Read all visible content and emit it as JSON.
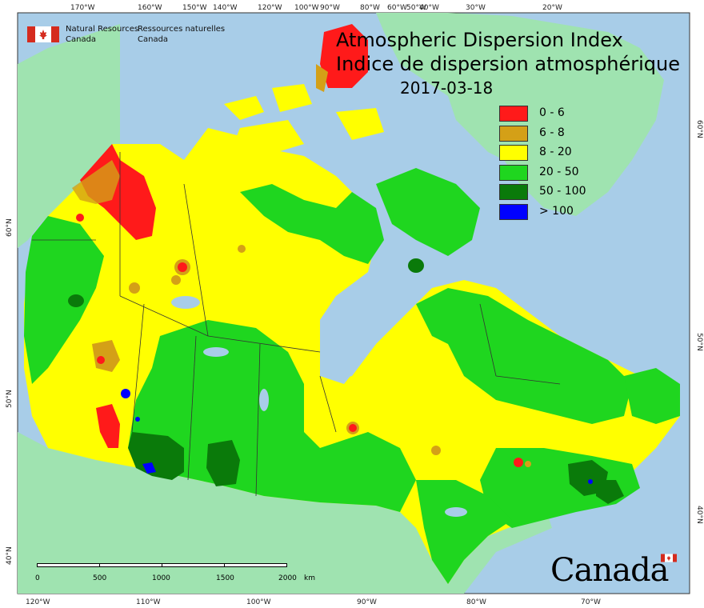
{
  "map": {
    "title_en": "Atmospheric Dispersion Index",
    "title_fr": "Indice de dispersion atmosphérique",
    "date": "2017-03-18",
    "agency": {
      "en": [
        "Natural Resources",
        "Canada"
      ],
      "fr": [
        "Ressources naturelles",
        "Canada"
      ]
    },
    "wordmark": "Canada",
    "legend": [
      {
        "label": "0 - 6",
        "color": "#ff1a1a"
      },
      {
        "label": "6 - 8",
        "color": "#d4a017"
      },
      {
        "label": "8 - 20",
        "color": "#ffff00"
      },
      {
        "label": "20 - 50",
        "color": "#1fd61f"
      },
      {
        "label": "50 - 100",
        "color": "#0a7a0a"
      },
      {
        "label": "> 100",
        "color": "#0000ff"
      }
    ],
    "scale": {
      "ticks": [
        "0",
        "500",
        "1000",
        "1500",
        "2000"
      ],
      "unit": "km"
    },
    "top_lon_labels": [
      "170°W",
      "160°W",
      "150°W",
      "140°W",
      "120°W",
      "100°W",
      "90°W",
      "80°W",
      "60°W",
      "50°W",
      "40°W",
      "30°W",
      "20°W"
    ],
    "bottom_lon_labels": [
      "120°W",
      "110°W",
      "100°W",
      "90°W",
      "80°W",
      "70°W"
    ],
    "left_lat_labels": [
      "60°N",
      "50°N",
      "40°N"
    ],
    "right_lat_labels": [
      "60°N",
      "50°N",
      "40°N"
    ],
    "colors": {
      "ocean": "#a8cde8",
      "land_outside": "#9fe3b0",
      "border": "#333333"
    }
  }
}
